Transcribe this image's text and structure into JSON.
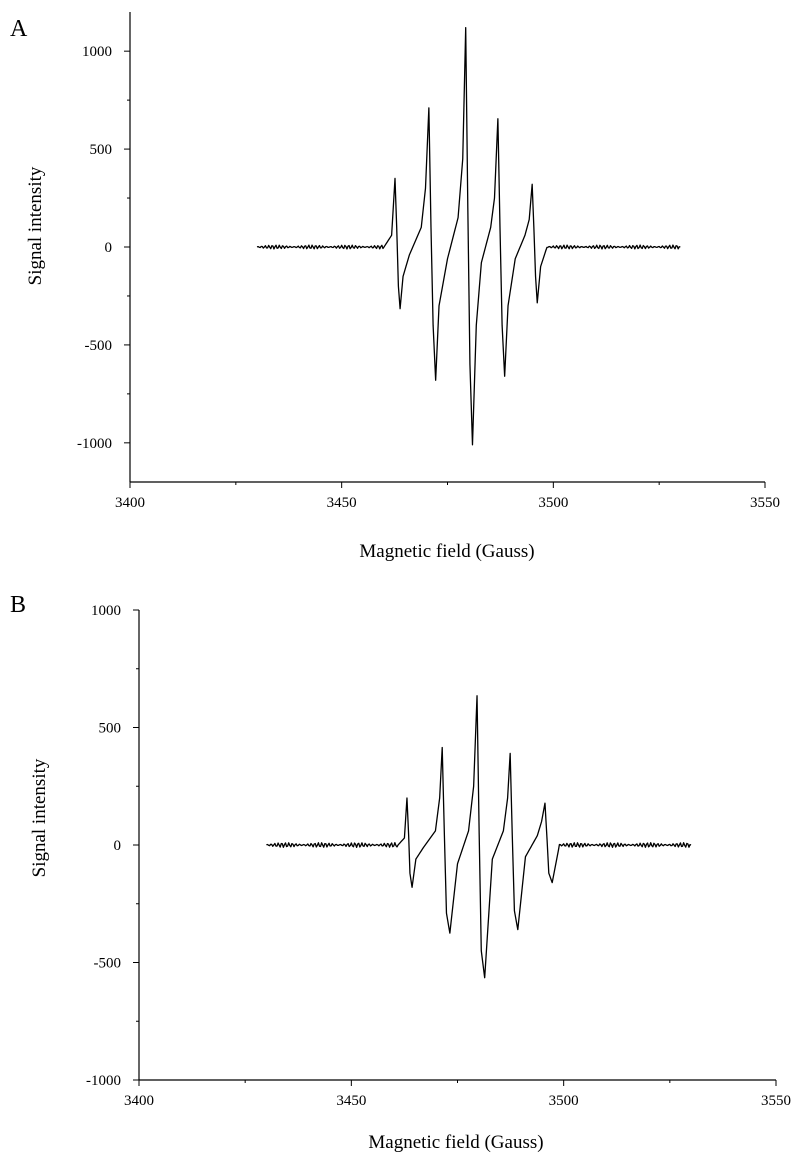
{
  "panels": [
    {
      "label": "A"
    },
    {
      "label": "B"
    }
  ],
  "chart_data": [
    {
      "type": "line",
      "panel": "A",
      "xlabel": "Magnetic field (Gauss)",
      "ylabel": "Signal intensity",
      "xlim": [
        3400,
        3550
      ],
      "ylim": [
        -1200,
        1200
      ],
      "xticks": [
        "3400",
        "3450",
        "3500",
        "3550"
      ],
      "yticks": [
        "-1000",
        "-500",
        "0",
        "500",
        "1000"
      ],
      "grid": false,
      "series": [
        {
          "x": [
            3430,
            3460,
            3461.8,
            3462.6,
            3463.0,
            3463.4,
            3463.8,
            3464.5,
            3466,
            3468.8,
            3469.8,
            3470.6,
            3471.1,
            3471.6,
            3472.2,
            3473,
            3475,
            3477.5,
            3478.6,
            3479.3,
            3479.8,
            3480.3,
            3480.9,
            3481.8,
            3483,
            3485.2,
            3486.1,
            3486.9,
            3487.4,
            3487.9,
            3488.5,
            3489.3,
            3491,
            3493.3,
            3494.3,
            3495.0,
            3495.4,
            3495.8,
            3496.2,
            3497,
            3498.5,
            3530
          ],
          "values": [
            0,
            0,
            60,
            350,
            100,
            -200,
            -315,
            -150,
            -40,
            100,
            300,
            710,
            100,
            -400,
            -680,
            -300,
            -60,
            150,
            450,
            1120,
            200,
            -600,
            -1010,
            -400,
            -80,
            100,
            250,
            655,
            100,
            -400,
            -660,
            -300,
            -60,
            60,
            140,
            320,
            100,
            -150,
            -285,
            -100,
            0,
            0
          ]
        }
      ]
    },
    {
      "type": "line",
      "panel": "B",
      "xlabel": "Magnetic field (Gauss)",
      "ylabel": "Signal intensity",
      "xlim": [
        3400,
        3550
      ],
      "ylim": [
        -1000,
        1000
      ],
      "xticks": [
        "3400",
        "3450",
        "3500",
        "3550"
      ],
      "yticks": [
        "-1000",
        "-500",
        "0",
        "500",
        "1000"
      ],
      "grid": false,
      "series": [
        {
          "x": [
            3430,
            3461,
            3462.5,
            3463.1,
            3463.5,
            3463.8,
            3464.3,
            3465.2,
            3467,
            3469.8,
            3470.8,
            3471.4,
            3471.9,
            3472.4,
            3473.2,
            3475,
            3477.6,
            3478.8,
            3479.6,
            3480.1,
            3480.6,
            3481.4,
            3483.2,
            3485.8,
            3486.8,
            3487.4,
            3487.9,
            3488.4,
            3489.2,
            3491,
            3493.8,
            3494.8,
            3495.6,
            3496.1,
            3496.5,
            3497.3,
            3499,
            3530
          ],
          "values": [
            0,
            0,
            30,
            200,
            40,
            -120,
            -180,
            -60,
            -10,
            60,
            200,
            415,
            50,
            -290,
            -375,
            -80,
            60,
            250,
            635,
            50,
            -450,
            -565,
            -60,
            60,
            200,
            390,
            40,
            -280,
            -360,
            -50,
            40,
            100,
            178,
            20,
            -120,
            -160,
            0,
            0
          ]
        }
      ]
    }
  ]
}
